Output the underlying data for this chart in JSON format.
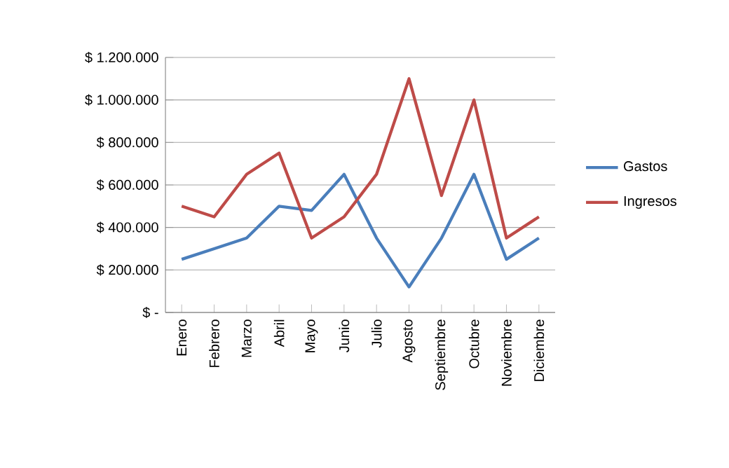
{
  "chart_data": {
    "type": "line",
    "categories": [
      "Enero",
      "Febrero",
      "Marzo",
      "Abril",
      "Mayo",
      "Junio",
      "Julio",
      "Agosto",
      "Septiembre",
      "Octubre",
      "Noviembre",
      "Diciembre"
    ],
    "series": [
      {
        "name": "Gastos",
        "color": "#4a7ebb",
        "values": [
          250000,
          300000,
          350000,
          500000,
          480000,
          650000,
          350000,
          120000,
          350000,
          650000,
          250000,
          350000
        ]
      },
      {
        "name": "Ingresos",
        "color": "#be4b48",
        "values": [
          500000,
          450000,
          650000,
          750000,
          350000,
          450000,
          650000,
          1100000,
          550000,
          1000000,
          350000,
          450000
        ]
      }
    ],
    "ylim": [
      0,
      1200000
    ],
    "yticks": [
      {
        "value": 0,
        "label": "$ -"
      },
      {
        "value": 200000,
        "label": "$ 200.000"
      },
      {
        "value": 400000,
        "label": "$ 400.000"
      },
      {
        "value": 600000,
        "label": "$ 600.000"
      },
      {
        "value": 800000,
        "label": "$ 800.000"
      },
      {
        "value": 1000000,
        "label": "$ 1.000.000"
      },
      {
        "value": 1200000,
        "label": "$ 1.200.000"
      }
    ],
    "grid": "y",
    "legend": "right",
    "marker": "none",
    "line_style": "solid"
  }
}
